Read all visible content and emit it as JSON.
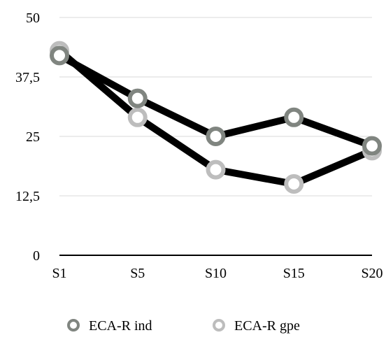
{
  "chart_data": {
    "type": "line",
    "title": "",
    "xlabel": "",
    "ylabel": "",
    "categories": [
      "S1",
      "S5",
      "S10",
      "S15",
      "S20"
    ],
    "y_ticks": [
      "0",
      "12,5",
      "25",
      "37,5",
      "50"
    ],
    "ylim": [
      0,
      50
    ],
    "grid": true,
    "legend_position": "bottom",
    "series": [
      {
        "name": "ECA-R ind",
        "values": [
          42,
          33,
          25,
          29,
          23
        ],
        "marker_color": "#808580",
        "line_color": "#000000"
      },
      {
        "name": "ECA-R gpe",
        "values": [
          43,
          29,
          18,
          15,
          22
        ],
        "marker_color": "#bdbdbd",
        "line_color": "#000000"
      }
    ]
  }
}
